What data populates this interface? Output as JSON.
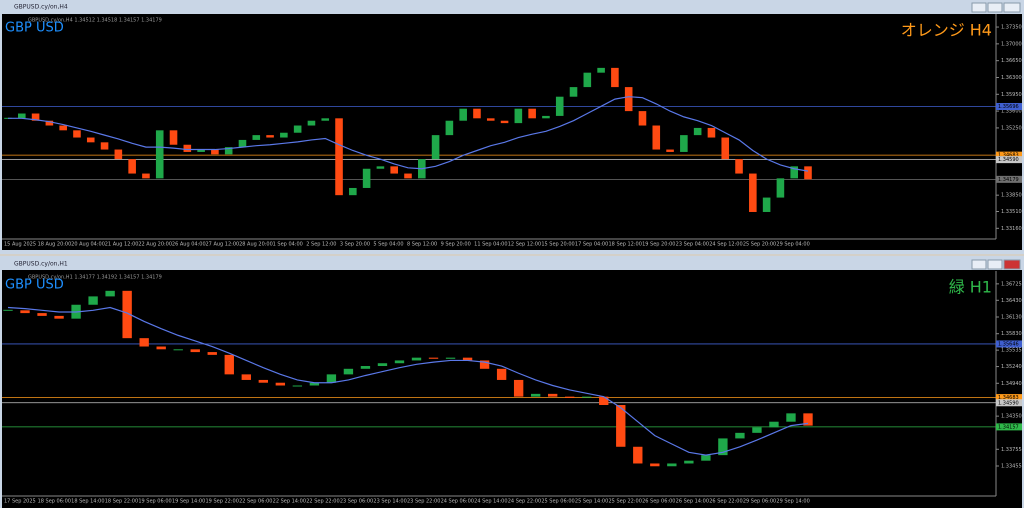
{
  "chart_data": [
    {
      "type": "candlestick",
      "title": "GBPUSD.cy/on,H4",
      "info": "GBPUSD.cy/on,H4 1.34512 1.34518 1.34157 1.34179",
      "symbol": "GBP USD",
      "timeframe": "オレンジ H4",
      "timeframe_color": "#ff9a1a",
      "up_color": "#1fa84a",
      "down_color": "#ff4a12",
      "ma_color": "#5a78e8",
      "ylim": [
        1.33,
        1.3758
      ],
      "yticks": [
        {
          "value": 1.3316,
          "label": "1.33160"
        },
        {
          "value": 1.3351,
          "label": "1.33510"
        },
        {
          "value": 1.3385,
          "label": "1.33850"
        },
        {
          "value": 1.3525,
          "label": "1.35250"
        },
        {
          "value": 1.356,
          "label": "1.35600"
        },
        {
          "value": 1.3595,
          "label": "1.35950"
        },
        {
          "value": 1.363,
          "label": "1.36300"
        },
        {
          "value": 1.3665,
          "label": "1.36650"
        },
        {
          "value": 1.37,
          "label": "1.37000"
        },
        {
          "value": 1.3735,
          "label": "1.37350"
        }
      ],
      "levels": [
        {
          "value": 1.35696,
          "label": "1.35696",
          "color": "#3f5fd0"
        },
        {
          "value": 1.34683,
          "label": "1.34683",
          "color": "#ff9a1a"
        },
        {
          "value": 1.3459,
          "label": "1.34590",
          "color": "#c8c8c8"
        },
        {
          "value": 1.34179,
          "label": "1.34179",
          "color": "#707070"
        }
      ],
      "x_labels": [
        "15 Aug 2025",
        "18 Aug 20:00",
        "20 Aug 04:00",
        "21 Aug 12:00",
        "22 Aug 20:00",
        "26 Aug 04:00",
        "27 Aug 12:00",
        "28 Aug 20:00",
        "1 Sep 04:00",
        "2 Sep 12:00",
        "3 Sep 20:00",
        "5 Sep 04:00",
        "8 Sep 12:00",
        "9 Sep 20:00",
        "11 Sep 04:00",
        "12 Sep 12:00",
        "15 Sep 20:00",
        "17 Sep 04:00",
        "18 Sep 12:00",
        "19 Sep 20:00",
        "23 Sep 04:00",
        "24 Sep 12:00",
        "25 Sep 20:00",
        "29 Sep 04:00"
      ],
      "closes": [
        1.3545,
        1.3555,
        1.354,
        1.353,
        1.352,
        1.3505,
        1.3495,
        1.348,
        1.346,
        1.343,
        1.342,
        1.352,
        1.349,
        1.3475,
        1.348,
        1.347,
        1.3485,
        1.35,
        1.351,
        1.3505,
        1.3515,
        1.353,
        1.354,
        1.3545,
        1.3385,
        1.34,
        1.344,
        1.3445,
        1.343,
        1.342,
        1.346,
        1.351,
        1.354,
        1.3565,
        1.3545,
        1.354,
        1.3535,
        1.3565,
        1.3545,
        1.355,
        1.359,
        1.361,
        1.364,
        1.365,
        1.361,
        1.356,
        1.353,
        1.348,
        1.3475,
        1.351,
        1.3525,
        1.3505,
        1.346,
        1.343,
        1.335,
        1.338,
        1.342,
        1.3445,
        1.3418
      ],
      "ma": [
        1.3545,
        1.3545,
        1.3542,
        1.3538,
        1.3532,
        1.3525,
        1.3518,
        1.351,
        1.3502,
        1.3493,
        1.3485,
        1.3485,
        1.3483,
        1.348,
        1.348,
        1.348,
        1.3482,
        1.3485,
        1.3488,
        1.349,
        1.3493,
        1.3496,
        1.35,
        1.3503,
        1.349,
        1.3478,
        1.3468,
        1.346,
        1.345,
        1.3442,
        1.344,
        1.3445,
        1.3455,
        1.3468,
        1.3478,
        1.3488,
        1.3495,
        1.3505,
        1.3512,
        1.3518,
        1.3528,
        1.354,
        1.3555,
        1.357,
        1.3585,
        1.359,
        1.3588,
        1.3575,
        1.356,
        1.3548,
        1.354,
        1.353,
        1.3515,
        1.35,
        1.3478,
        1.346,
        1.3448,
        1.344,
        1.3435
      ]
    },
    {
      "type": "candlestick",
      "title": "GBPUSD.cy/on,H1",
      "info": "GBPUSD.cy/on,H1 1.34177 1.34192 1.34157 1.34179",
      "symbol": "GBP USD",
      "timeframe": "緑 H1",
      "timeframe_color": "#2fb84a",
      "up_color": "#1fa84a",
      "down_color": "#ff4a12",
      "ma_color": "#5a78e8",
      "ylim": [
        1.3297,
        1.3692
      ],
      "yticks": [
        {
          "value": 1.33455,
          "label": "1.33455"
        },
        {
          "value": 1.33755,
          "label": "1.33755"
        },
        {
          "value": 1.3435,
          "label": "1.34350"
        },
        {
          "value": 1.3494,
          "label": "1.34940"
        },
        {
          "value": 1.3524,
          "label": "1.35240"
        },
        {
          "value": 1.35535,
          "label": "1.35535"
        },
        {
          "value": 1.3583,
          "label": "1.35830"
        },
        {
          "value": 1.3613,
          "label": "1.36130"
        },
        {
          "value": 1.3643,
          "label": "1.36430"
        },
        {
          "value": 1.36725,
          "label": "1.36725"
        }
      ],
      "levels": [
        {
          "value": 1.35646,
          "label": "1.35646",
          "color": "#3f5fd0"
        },
        {
          "value": 1.34683,
          "label": "1.34683",
          "color": "#ff9a1a"
        },
        {
          "value": 1.3459,
          "label": "1.34590",
          "color": "#c8c8c8"
        },
        {
          "value": 1.34157,
          "label": "1.34157",
          "color": "#2fb84a"
        }
      ],
      "x_labels": [
        "17 Sep 2025",
        "18 Sep 06:00",
        "18 Sep 14:00",
        "18 Sep 22:00",
        "19 Sep 06:00",
        "19 Sep 14:00",
        "19 Sep 22:00",
        "22 Sep 06:00",
        "22 Sep 14:00",
        "22 Sep 22:00",
        "23 Sep 06:00",
        "23 Sep 14:00",
        "23 Sep 22:00",
        "24 Sep 06:00",
        "24 Sep 14:00",
        "24 Sep 22:00",
        "25 Sep 06:00",
        "25 Sep 14:00",
        "25 Sep 22:00",
        "26 Sep 06:00",
        "26 Sep 14:00",
        "26 Sep 22:00",
        "29 Sep 06:00",
        "29 Sep 14:00"
      ],
      "closes": [
        1.3625,
        1.362,
        1.3615,
        1.361,
        1.3635,
        1.365,
        1.366,
        1.3575,
        1.356,
        1.3555,
        1.3555,
        1.355,
        1.3545,
        1.351,
        1.35,
        1.3495,
        1.349,
        1.349,
        1.3495,
        1.351,
        1.352,
        1.3525,
        1.353,
        1.3535,
        1.354,
        1.3538,
        1.354,
        1.3535,
        1.352,
        1.35,
        1.347,
        1.3475,
        1.347,
        1.3468,
        1.347,
        1.3455,
        1.338,
        1.335,
        1.3345,
        1.335,
        1.3355,
        1.3365,
        1.3395,
        1.3405,
        1.3415,
        1.3425,
        1.344,
        1.3418
      ],
      "ma": [
        1.363,
        1.3628,
        1.3625,
        1.3622,
        1.3622,
        1.3625,
        1.363,
        1.362,
        1.3605,
        1.3592,
        1.358,
        1.357,
        1.356,
        1.3548,
        1.3535,
        1.3522,
        1.351,
        1.35,
        1.3495,
        1.3495,
        1.35,
        1.3508,
        1.3515,
        1.3522,
        1.3528,
        1.3532,
        1.3535,
        1.3535,
        1.3532,
        1.3525,
        1.3512,
        1.35,
        1.349,
        1.3482,
        1.3476,
        1.347,
        1.345,
        1.3425,
        1.34,
        1.3385,
        1.337,
        1.3365,
        1.337,
        1.338,
        1.3392,
        1.3405,
        1.3418,
        1.3422
      ]
    }
  ]
}
